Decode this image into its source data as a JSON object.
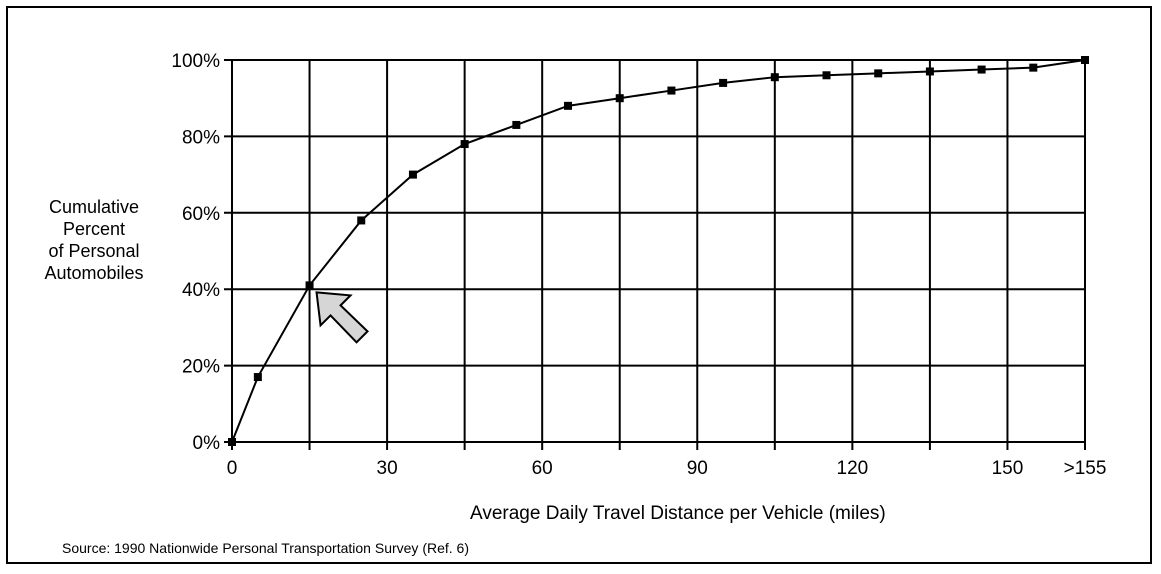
{
  "chart_data": {
    "type": "line",
    "xlabel": "Average Daily Travel Distance per Vehicle (miles)",
    "ylabel": [
      "Cumulative",
      "Percent",
      "of Personal",
      "Automobiles"
    ],
    "x_tick_labels": [
      "0",
      "30",
      "60",
      "90",
      "120",
      "150",
      ">155"
    ],
    "y_tick_labels": [
      "0%",
      "20%",
      "40%",
      "60%",
      "80%",
      "100%"
    ],
    "xlim": [
      0,
      165
    ],
    "ylim": [
      0,
      100
    ],
    "grid": true,
    "series": [
      {
        "x": [
          0,
          5,
          15,
          25,
          35,
          45,
          55,
          65,
          75,
          85,
          95,
          105,
          115,
          125,
          135,
          145,
          155,
          165
        ],
        "y": [
          0,
          17,
          41,
          58,
          70,
          78,
          83,
          88,
          90,
          92,
          94,
          95.5,
          96,
          96.5,
          97,
          97.5,
          98,
          100
        ]
      }
    ],
    "annotation": {
      "type": "arrow",
      "target": {
        "x": 15,
        "y": 41
      }
    },
    "source": "Source: 1990 Nationwide Personal Transportation Survey  (Ref. 6)"
  }
}
